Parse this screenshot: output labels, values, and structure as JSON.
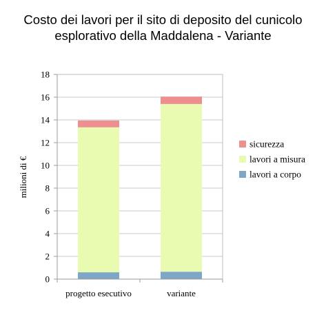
{
  "chart_data": {
    "type": "bar",
    "stacked": true,
    "title_lines": [
      "Costo dei lavori per il sito di deposito del cunicolo",
      "esplorativo della Maddalena - Variante"
    ],
    "ylabel": "milioni di €",
    "xlabel": "",
    "ylim": [
      0,
      18
    ],
    "yticks": [
      0,
      2,
      4,
      6,
      8,
      10,
      12,
      14,
      16,
      18
    ],
    "grid": true,
    "legend_position": "right",
    "categories": [
      "progetto esecutivo",
      "variante"
    ],
    "series": [
      {
        "name": "lavori a corpo",
        "color": "#7ea6c6",
        "values": [
          0.6,
          0.65
        ]
      },
      {
        "name": "lavori a misura",
        "color": "#e9fbb0",
        "values": [
          12.75,
          14.75
        ]
      },
      {
        "name": "sicurezza",
        "color": "#ee8f8f",
        "values": [
          0.6,
          0.65
        ]
      }
    ],
    "legend_order": [
      "sicurezza",
      "lavori a misura",
      "lavori a corpo"
    ]
  }
}
